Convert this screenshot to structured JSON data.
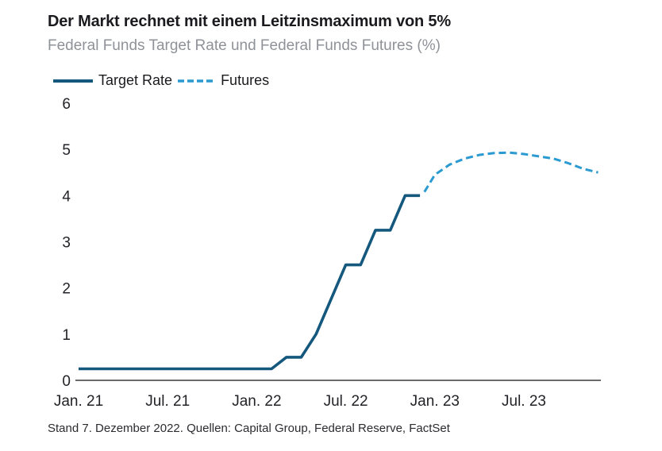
{
  "header": {
    "title": "Der Markt rechnet mit einem Leitzinsmaximum von 5%",
    "subtitle": "Federal Funds Target Rate und Federal Funds Futures (%)"
  },
  "legend": {
    "items": [
      {
        "label": "Target Rate",
        "style": "solid",
        "color": "#15587e"
      },
      {
        "label": "Futures",
        "style": "dashed",
        "color": "#2b9ad1"
      }
    ]
  },
  "footer": {
    "text": "Stand 7. Dezember 2022. Quellen: Capital Group, Federal Reserve, FactSet"
  },
  "colors": {
    "target_rate": "#15587e",
    "futures": "#2b9ad1",
    "axis": "#38383c",
    "title_text": "#1b1b1f",
    "subtitle_text": "#8f9298"
  },
  "chart_data": {
    "type": "line",
    "title": "Der Markt rechnet mit einem Leitzinsmaximum von 5%",
    "subtitle": "Federal Funds Target Rate und Federal Funds Futures (%)",
    "xlabel": "",
    "ylabel": "",
    "ylim": [
      0,
      6
    ],
    "yticks": [
      0,
      1,
      2,
      3,
      4,
      5,
      6
    ],
    "grid": false,
    "legend_position": "top-left",
    "x_unit": "months_since_2021-01",
    "xlim": [
      0,
      35.2
    ],
    "xticks": [
      {
        "label": "Jan. 21",
        "month": 0
      },
      {
        "label": "Jul. 21",
        "month": 6
      },
      {
        "label": "Jan. 22",
        "month": 12
      },
      {
        "label": "Jul. 22",
        "month": 18
      },
      {
        "label": "Jan. 23",
        "month": 24
      },
      {
        "label": "Jul. 23",
        "month": 30
      }
    ],
    "series": [
      {
        "name": "Target Rate",
        "style": "solid",
        "points": [
          {
            "date": "2021-01",
            "month": 0,
            "value": 0.25
          },
          {
            "date": "2022-02",
            "month": 13,
            "value": 0.25
          },
          {
            "date": "2022-03",
            "month": 14,
            "value": 0.5
          },
          {
            "date": "2022-04",
            "month": 15,
            "value": 0.5
          },
          {
            "date": "2022-05",
            "month": 16,
            "value": 1.0
          },
          {
            "date": "2022-06",
            "month": 17,
            "value": 1.75
          },
          {
            "date": "2022-07",
            "month": 18,
            "value": 2.5
          },
          {
            "date": "2022-08",
            "month": 19,
            "value": 2.5
          },
          {
            "date": "2022-09",
            "month": 20,
            "value": 3.25
          },
          {
            "date": "2022-10",
            "month": 21,
            "value": 3.25
          },
          {
            "date": "2022-11",
            "month": 22,
            "value": 4.0
          },
          {
            "date": "2022-12",
            "month": 23,
            "value": 4.0
          }
        ]
      },
      {
        "name": "Futures",
        "style": "dashed",
        "points": [
          {
            "date": "2022-12",
            "month": 23.3,
            "value": 4.08
          },
          {
            "date": "2023-01",
            "month": 24,
            "value": 4.45
          },
          {
            "date": "2023-02",
            "month": 25,
            "value": 4.67
          },
          {
            "date": "2023-03",
            "month": 26,
            "value": 4.8
          },
          {
            "date": "2023-04",
            "month": 27,
            "value": 4.88
          },
          {
            "date": "2023-05",
            "month": 28,
            "value": 4.92
          },
          {
            "date": "2023-06",
            "month": 29,
            "value": 4.93
          },
          {
            "date": "2023-07",
            "month": 30,
            "value": 4.9
          },
          {
            "date": "2023-08",
            "month": 31,
            "value": 4.85
          },
          {
            "date": "2023-09",
            "month": 32,
            "value": 4.8
          },
          {
            "date": "2023-10",
            "month": 33,
            "value": 4.7
          },
          {
            "date": "2023-11",
            "month": 34,
            "value": 4.58
          },
          {
            "date": "2023-12",
            "month": 35,
            "value": 4.5
          }
        ]
      }
    ]
  }
}
